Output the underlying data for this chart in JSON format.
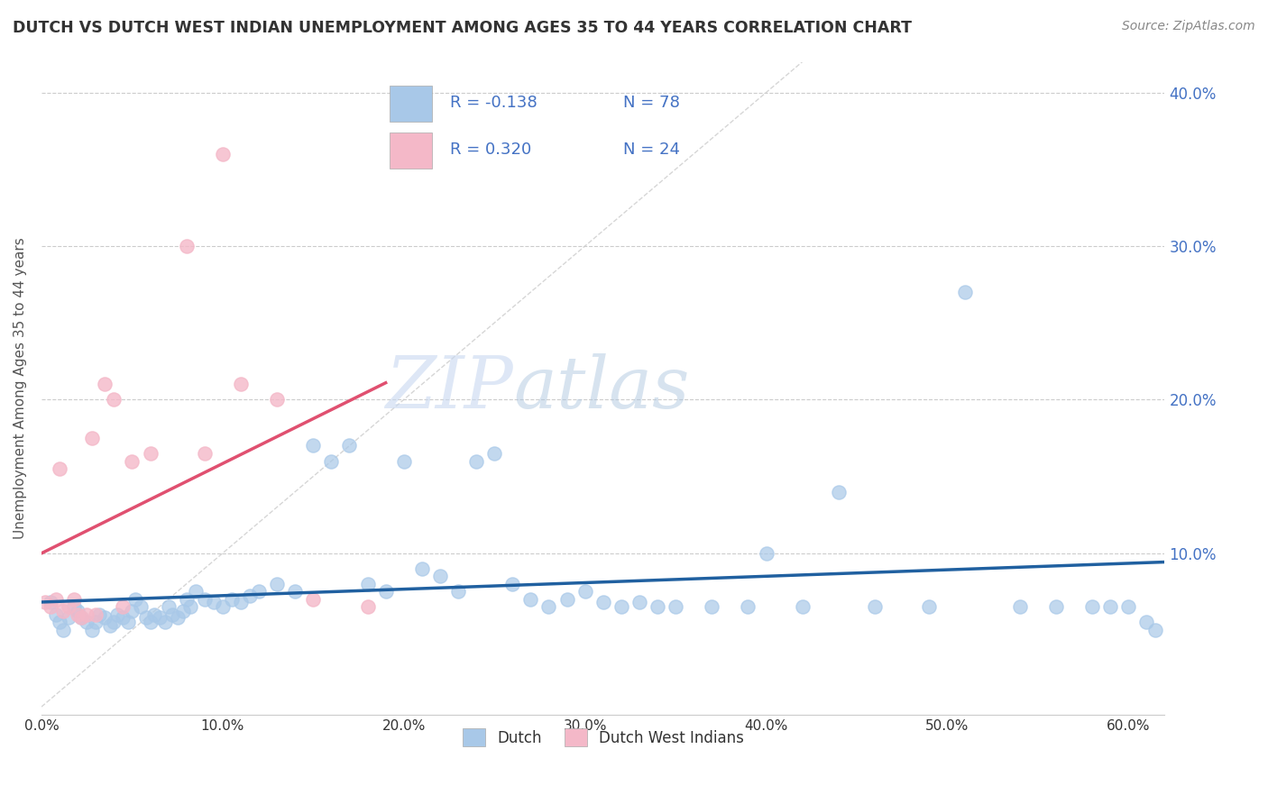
{
  "title": "DUTCH VS DUTCH WEST INDIAN UNEMPLOYMENT AMONG AGES 35 TO 44 YEARS CORRELATION CHART",
  "source": "Source: ZipAtlas.com",
  "ylabel": "Unemployment Among Ages 35 to 44 years",
  "xlim": [
    0.0,
    0.62
  ],
  "ylim": [
    -0.005,
    0.42
  ],
  "x_ticks": [
    0.0,
    0.1,
    0.2,
    0.3,
    0.4,
    0.5,
    0.6
  ],
  "x_tick_labels": [
    "0.0%",
    "10.0%",
    "20.0%",
    "30.0%",
    "40.0%",
    "50.0%",
    "60.0%"
  ],
  "y_ticks": [
    0.1,
    0.2,
    0.3,
    0.4
  ],
  "y_tick_labels": [
    "10.0%",
    "20.0%",
    "30.0%",
    "40.0%"
  ],
  "watermark_zip": "ZIP",
  "watermark_atlas": "atlas",
  "legend_r1": "-0.138",
  "legend_n1": "78",
  "legend_r2": "0.320",
  "legend_n2": "24",
  "legend_label1": "Dutch",
  "legend_label2": "Dutch West Indians",
  "color_blue": "#a8c8e8",
  "color_pink": "#f4b8c8",
  "color_blue_dark": "#3070b0",
  "color_pink_dark": "#e06080",
  "diag_line_color": "#cccccc",
  "blue_trend_color": "#2060a0",
  "pink_trend_color": "#e05070",
  "axis_label_color": "#4472c4",
  "title_color": "#333333",
  "blue_scatter_x": [
    0.005,
    0.008,
    0.01,
    0.012,
    0.015,
    0.018,
    0.02,
    0.022,
    0.025,
    0.028,
    0.03,
    0.032,
    0.035,
    0.038,
    0.04,
    0.042,
    0.045,
    0.048,
    0.05,
    0.052,
    0.055,
    0.058,
    0.06,
    0.062,
    0.065,
    0.068,
    0.07,
    0.072,
    0.075,
    0.078,
    0.08,
    0.082,
    0.085,
    0.09,
    0.095,
    0.1,
    0.105,
    0.11,
    0.115,
    0.12,
    0.13,
    0.14,
    0.15,
    0.16,
    0.17,
    0.18,
    0.19,
    0.2,
    0.21,
    0.22,
    0.23,
    0.24,
    0.25,
    0.26,
    0.27,
    0.28,
    0.29,
    0.3,
    0.31,
    0.32,
    0.33,
    0.34,
    0.35,
    0.37,
    0.39,
    0.4,
    0.42,
    0.44,
    0.46,
    0.49,
    0.51,
    0.54,
    0.56,
    0.58,
    0.59,
    0.6,
    0.61,
    0.615
  ],
  "blue_scatter_y": [
    0.068,
    0.06,
    0.055,
    0.05,
    0.058,
    0.065,
    0.062,
    0.058,
    0.055,
    0.05,
    0.055,
    0.06,
    0.058,
    0.053,
    0.055,
    0.06,
    0.058,
    0.055,
    0.062,
    0.07,
    0.065,
    0.058,
    0.055,
    0.06,
    0.058,
    0.055,
    0.065,
    0.06,
    0.058,
    0.062,
    0.07,
    0.065,
    0.075,
    0.07,
    0.068,
    0.065,
    0.07,
    0.068,
    0.072,
    0.075,
    0.08,
    0.075,
    0.17,
    0.16,
    0.17,
    0.08,
    0.075,
    0.16,
    0.09,
    0.085,
    0.075,
    0.16,
    0.165,
    0.08,
    0.07,
    0.065,
    0.07,
    0.075,
    0.068,
    0.065,
    0.068,
    0.065,
    0.065,
    0.065,
    0.065,
    0.1,
    0.065,
    0.14,
    0.065,
    0.065,
    0.27,
    0.065,
    0.065,
    0.065,
    0.065,
    0.065,
    0.055,
    0.05
  ],
  "pink_scatter_x": [
    0.002,
    0.005,
    0.008,
    0.01,
    0.012,
    0.015,
    0.018,
    0.02,
    0.022,
    0.025,
    0.028,
    0.03,
    0.035,
    0.04,
    0.045,
    0.05,
    0.06,
    0.08,
    0.09,
    0.1,
    0.11,
    0.13,
    0.15,
    0.18
  ],
  "pink_scatter_y": [
    0.068,
    0.065,
    0.07,
    0.155,
    0.062,
    0.065,
    0.07,
    0.06,
    0.058,
    0.06,
    0.175,
    0.06,
    0.21,
    0.2,
    0.065,
    0.16,
    0.165,
    0.3,
    0.165,
    0.36,
    0.21,
    0.2,
    0.07,
    0.065
  ]
}
